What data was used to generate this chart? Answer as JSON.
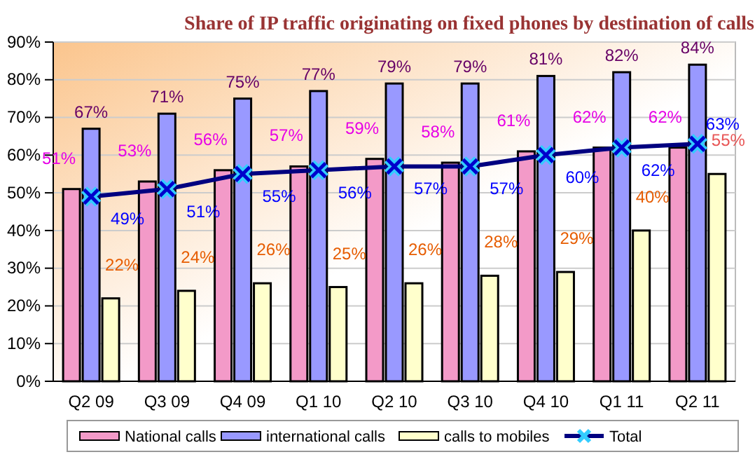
{
  "chart_data": {
    "type": "bar",
    "title": "Share of IP traffic originating on fixed phones by destination of calls",
    "categories": [
      "Q2 09",
      "Q3 09",
      "Q4 09",
      "Q1 10",
      "Q2 10",
      "Q3 10",
      "Q4 10",
      "Q1 11",
      "Q2 11"
    ],
    "series": [
      {
        "name": "National calls",
        "color": "#f39ac8",
        "values": [
          51,
          53,
          56,
          57,
          59,
          58,
          61,
          62,
          62
        ],
        "value_labels": [
          "51%",
          "53%",
          "56%",
          "57%",
          "59%",
          "58%",
          "61%",
          "62%",
          "62%"
        ]
      },
      {
        "name": "international calls",
        "color": "#9999ff",
        "values": [
          67,
          71,
          75,
          77,
          79,
          79,
          81,
          82,
          84
        ],
        "value_labels": [
          "67%",
          "71%",
          "75%",
          "77%",
          "79%",
          "79%",
          "81%",
          "82%",
          "84%"
        ]
      },
      {
        "name": "calls to mobiles",
        "color": "#ffffcc",
        "values": [
          22,
          24,
          26,
          25,
          26,
          28,
          29,
          40,
          55
        ],
        "value_labels": [
          "22%",
          "24%",
          "26%",
          "25%",
          "26%",
          "28%",
          "29%",
          "40%",
          "55%"
        ]
      },
      {
        "name": "Total",
        "type": "line",
        "color": "#000080",
        "marker": "cross",
        "values": [
          49,
          51,
          55,
          56,
          57,
          57,
          60,
          62,
          63
        ],
        "value_labels": [
          "49%",
          "51%",
          "55%",
          "56%",
          "57%",
          "57%",
          "60%",
          "62%",
          "63%"
        ]
      }
    ],
    "ylim": [
      0,
      90
    ],
    "yticks": [
      {
        "value": 0,
        "label": "0%"
      },
      {
        "value": 10,
        "label": "10%"
      },
      {
        "value": 20,
        "label": "20%"
      },
      {
        "value": 30,
        "label": "30%"
      },
      {
        "value": 40,
        "label": "40%"
      },
      {
        "value": 50,
        "label": "50%"
      },
      {
        "value": 60,
        "label": "60%"
      },
      {
        "value": 70,
        "label": "70%"
      },
      {
        "value": 80,
        "label": "80%"
      },
      {
        "value": 90,
        "label": "90%"
      }
    ],
    "grid": "y",
    "legend": "bottom"
  }
}
